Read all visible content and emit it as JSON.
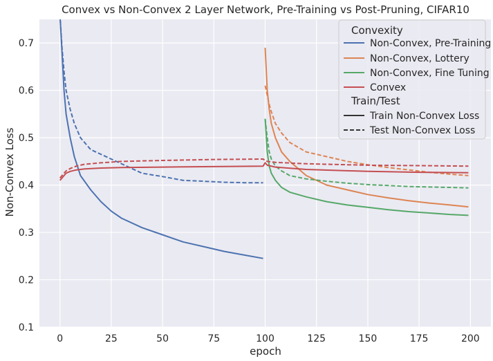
{
  "chart_data": {
    "type": "line",
    "title": "Convex vs Non-Convex 2 Layer Network, Pre-Training vs Post-Pruning, CIFAR10",
    "xlabel": "epoch",
    "ylabel": "Non-Convex Loss",
    "xlim": [
      -10,
      210
    ],
    "ylim": [
      0.1,
      0.75
    ],
    "xticks": [
      "0",
      "25",
      "50",
      "75",
      "100",
      "125",
      "150",
      "175",
      "200"
    ],
    "yticks": [
      "0.1",
      "0.2",
      "0.3",
      "0.4",
      "0.5",
      "0.6",
      "0.7"
    ],
    "grid": true,
    "legend_position": "top-right",
    "legend": {
      "hue_title": "Convexity",
      "hue_entries": [
        {
          "label": "Non-Convex, Pre-Training",
          "color": "#4c72b0"
        },
        {
          "label": "Non-Convex, Lottery",
          "color": "#dd8452"
        },
        {
          "label": "Non-Convex, Fine Tuning",
          "color": "#55a868"
        },
        {
          "label": "Convex",
          "color": "#c44e52"
        }
      ],
      "style_title": "Train/Test",
      "style_entries": [
        {
          "label": "Train Non-Convex Loss",
          "dash": "solid"
        },
        {
          "label": "Test Non-Convex Loss",
          "dash": "dashed"
        }
      ]
    },
    "series": [
      {
        "name": "Non-Convex, Pre-Training",
        "style": "Train Non-Convex Loss",
        "color": "#4c72b0",
        "dash": "solid",
        "x": [
          0,
          1,
          2,
          3,
          5,
          7,
          10,
          15,
          20,
          25,
          30,
          40,
          50,
          60,
          70,
          80,
          90,
          99
        ],
        "y": [
          0.76,
          0.68,
          0.6,
          0.55,
          0.5,
          0.46,
          0.42,
          0.39,
          0.365,
          0.345,
          0.33,
          0.31,
          0.295,
          0.28,
          0.27,
          0.26,
          0.252,
          0.245
        ]
      },
      {
        "name": "Non-Convex, Pre-Training",
        "style": "Test Non-Convex Loss",
        "color": "#4c72b0",
        "dash": "dashed",
        "x": [
          0,
          1,
          2,
          3,
          5,
          7,
          10,
          15,
          20,
          25,
          30,
          40,
          50,
          60,
          70,
          80,
          90,
          99
        ],
        "y": [
          0.76,
          0.69,
          0.64,
          0.6,
          0.56,
          0.53,
          0.5,
          0.475,
          0.465,
          0.455,
          0.445,
          0.425,
          0.418,
          0.41,
          0.408,
          0.406,
          0.405,
          0.405
        ]
      },
      {
        "name": "Non-Convex, Lottery",
        "style": "Train Non-Convex Loss",
        "color": "#dd8452",
        "dash": "solid",
        "x": [
          100,
          101,
          102,
          103,
          105,
          108,
          112,
          120,
          130,
          140,
          150,
          160,
          170,
          180,
          190,
          199
        ],
        "y": [
          0.69,
          0.6,
          0.56,
          0.53,
          0.5,
          0.47,
          0.45,
          0.42,
          0.4,
          0.39,
          0.38,
          0.373,
          0.367,
          0.362,
          0.358,
          0.354
        ]
      },
      {
        "name": "Non-Convex, Lottery",
        "style": "Test Non-Convex Loss",
        "color": "#dd8452",
        "dash": "dashed",
        "x": [
          100,
          101,
          102,
          103,
          105,
          108,
          112,
          120,
          130,
          140,
          150,
          160,
          170,
          180,
          190,
          199
        ],
        "y": [
          0.61,
          0.59,
          0.57,
          0.555,
          0.53,
          0.51,
          0.49,
          0.47,
          0.46,
          0.45,
          0.443,
          0.437,
          0.432,
          0.427,
          0.423,
          0.42
        ]
      },
      {
        "name": "Non-Convex, Fine Tuning",
        "style": "Train Non-Convex Loss",
        "color": "#55a868",
        "dash": "solid",
        "x": [
          100,
          101,
          102,
          103,
          105,
          108,
          112,
          120,
          130,
          140,
          150,
          160,
          170,
          180,
          190,
          199
        ],
        "y": [
          0.54,
          0.47,
          0.44,
          0.425,
          0.41,
          0.395,
          0.385,
          0.375,
          0.365,
          0.358,
          0.353,
          0.348,
          0.344,
          0.341,
          0.338,
          0.336
        ]
      },
      {
        "name": "Non-Convex, Fine Tuning",
        "style": "Test Non-Convex Loss",
        "color": "#55a868",
        "dash": "dashed",
        "x": [
          100,
          101,
          102,
          103,
          105,
          108,
          112,
          120,
          130,
          140,
          150,
          160,
          170,
          180,
          190,
          199
        ],
        "y": [
          0.54,
          0.5,
          0.47,
          0.455,
          0.44,
          0.43,
          0.42,
          0.413,
          0.408,
          0.404,
          0.401,
          0.399,
          0.397,
          0.396,
          0.395,
          0.394
        ]
      },
      {
        "name": "Convex",
        "style": "Train Non-Convex Loss",
        "color": "#c44e52",
        "dash": "solid",
        "x": [
          0,
          1,
          2,
          3,
          5,
          8,
          12,
          20,
          30,
          50,
          75,
          99,
          100,
          101,
          105,
          120,
          150,
          175,
          199
        ],
        "y": [
          0.41,
          0.415,
          0.42,
          0.425,
          0.429,
          0.432,
          0.434,
          0.436,
          0.437,
          0.438,
          0.439,
          0.44,
          0.447,
          0.442,
          0.438,
          0.433,
          0.429,
          0.427,
          0.426
        ]
      },
      {
        "name": "Convex",
        "style": "Test Non-Convex Loss",
        "color": "#c44e52",
        "dash": "dashed",
        "x": [
          0,
          1,
          2,
          3,
          5,
          8,
          12,
          20,
          30,
          50,
          75,
          99,
          100,
          101,
          105,
          120,
          150,
          175,
          199
        ],
        "y": [
          0.415,
          0.42,
          0.425,
          0.43,
          0.435,
          0.44,
          0.444,
          0.447,
          0.45,
          0.452,
          0.454,
          0.455,
          0.452,
          0.45,
          0.448,
          0.445,
          0.442,
          0.441,
          0.44
        ]
      }
    ]
  }
}
